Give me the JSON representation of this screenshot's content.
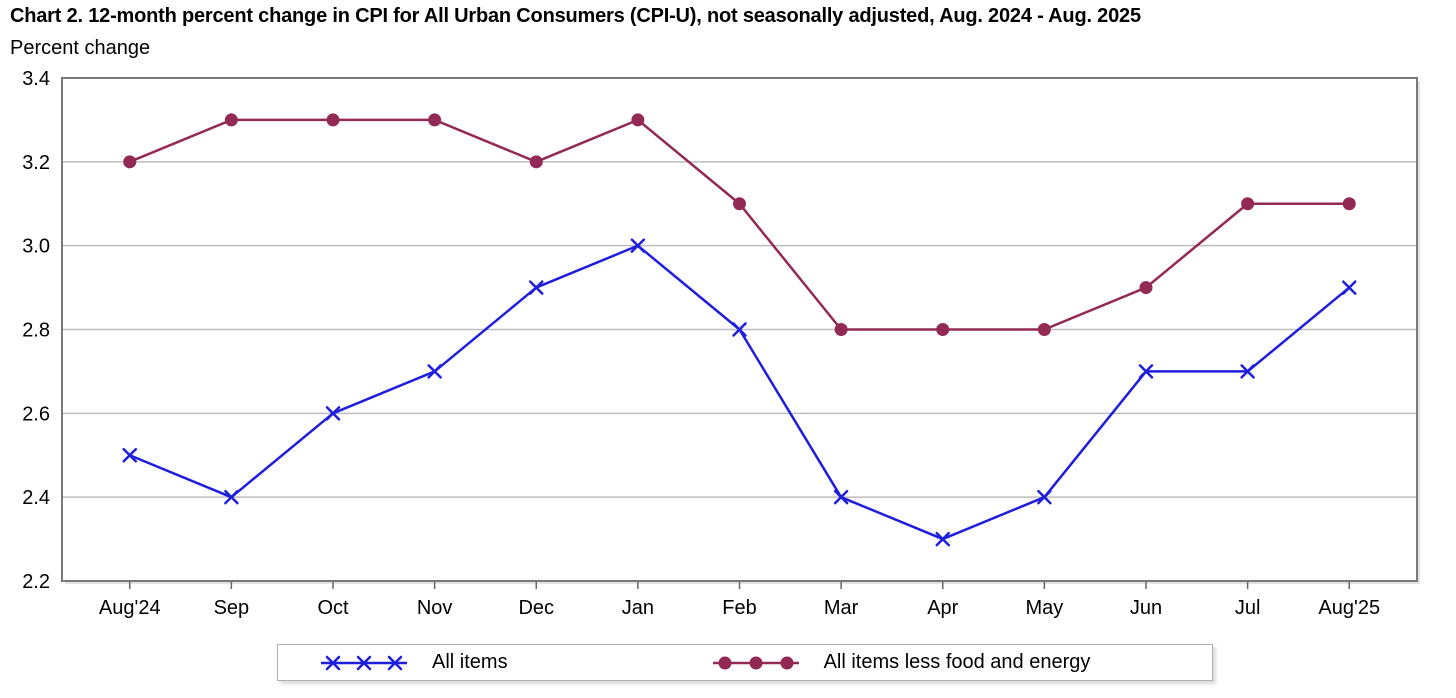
{
  "title": "Chart 2. 12-month percent change in CPI for All Urban Consumers (CPI-U), not seasonally adjusted, Aug. 2024 - Aug. 2025",
  "subtitle": "Percent change",
  "chart_data": {
    "type": "line",
    "categories": [
      "Aug'24",
      "Sep",
      "Oct",
      "Nov",
      "Dec",
      "Jan",
      "Feb",
      "Mar",
      "Apr",
      "May",
      "Jun",
      "Jul",
      "Aug'25"
    ],
    "series": [
      {
        "name": "All items",
        "marker": "x",
        "color": "#1E1EDC",
        "values": [
          2.5,
          2.4,
          2.6,
          2.7,
          2.9,
          3.0,
          2.8,
          2.4,
          2.3,
          2.4,
          2.7,
          2.7,
          2.9
        ]
      },
      {
        "name": "All items less food and energy",
        "marker": "circle",
        "color": "#932A55",
        "values": [
          3.2,
          3.3,
          3.3,
          3.3,
          3.2,
          3.3,
          3.1,
          2.8,
          2.8,
          2.8,
          2.9,
          3.1,
          3.1
        ]
      }
    ],
    "ylim": [
      2.2,
      3.4
    ],
    "y_ticks": [
      "2.2",
      "2.4",
      "2.6",
      "2.8",
      "3.0",
      "3.2",
      "3.4"
    ],
    "xlabel": "",
    "ylabel": "Percent change",
    "grid": "horizontal",
    "legend_position": "bottom"
  },
  "colors": {
    "gridline": "#BDBDBD",
    "frame": "#7A7A7A",
    "tick": "#666666",
    "shadow": "#E3E3E3"
  }
}
